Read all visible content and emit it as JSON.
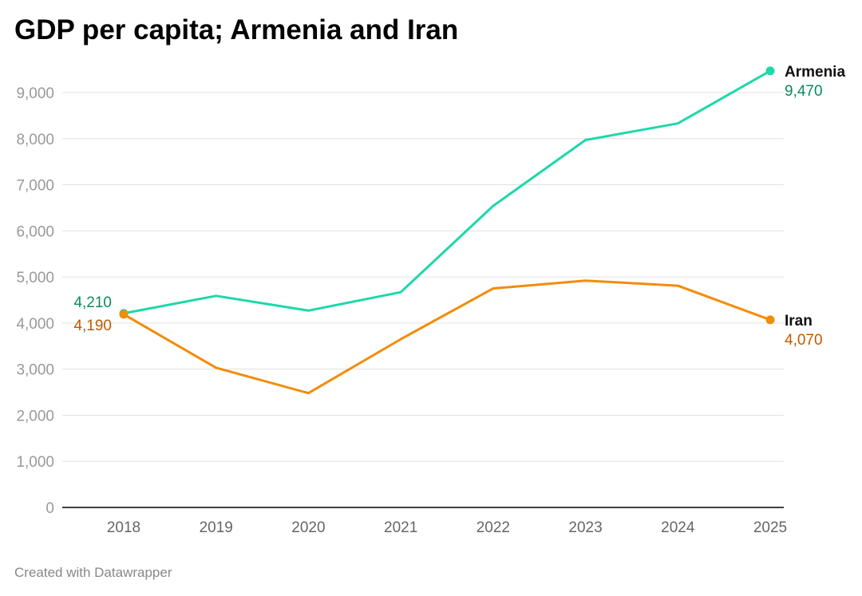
{
  "chart_data": {
    "type": "line",
    "title": "GDP per capita; Armenia and Iran",
    "xlabel": "",
    "ylabel": "",
    "x": [
      "2018",
      "2019",
      "2020",
      "2021",
      "2022",
      "2023",
      "2024",
      "2025"
    ],
    "ylim": [
      0,
      9000
    ],
    "yticks": [
      "0",
      "1,000",
      "2,000",
      "3,000",
      "4,000",
      "5,000",
      "6,000",
      "7,000",
      "8,000",
      "9,000"
    ],
    "grid": true,
    "series": [
      {
        "name": "Armenia",
        "color": "#1ed8a9",
        "label_color": "#0b8a5f",
        "values": [
          4210,
          4590,
          4270,
          4670,
          6540,
          7970,
          8330,
          9470
        ],
        "start_label": "4,210",
        "end_label": "9,470"
      },
      {
        "name": "Iran",
        "color": "#f28c0a",
        "label_color": "#c05a00",
        "values": [
          4190,
          3030,
          2480,
          3650,
          4750,
          4920,
          4810,
          4070
        ],
        "start_label": "4,190",
        "end_label": "4,070"
      }
    ]
  },
  "footer": "Created with Datawrapper"
}
